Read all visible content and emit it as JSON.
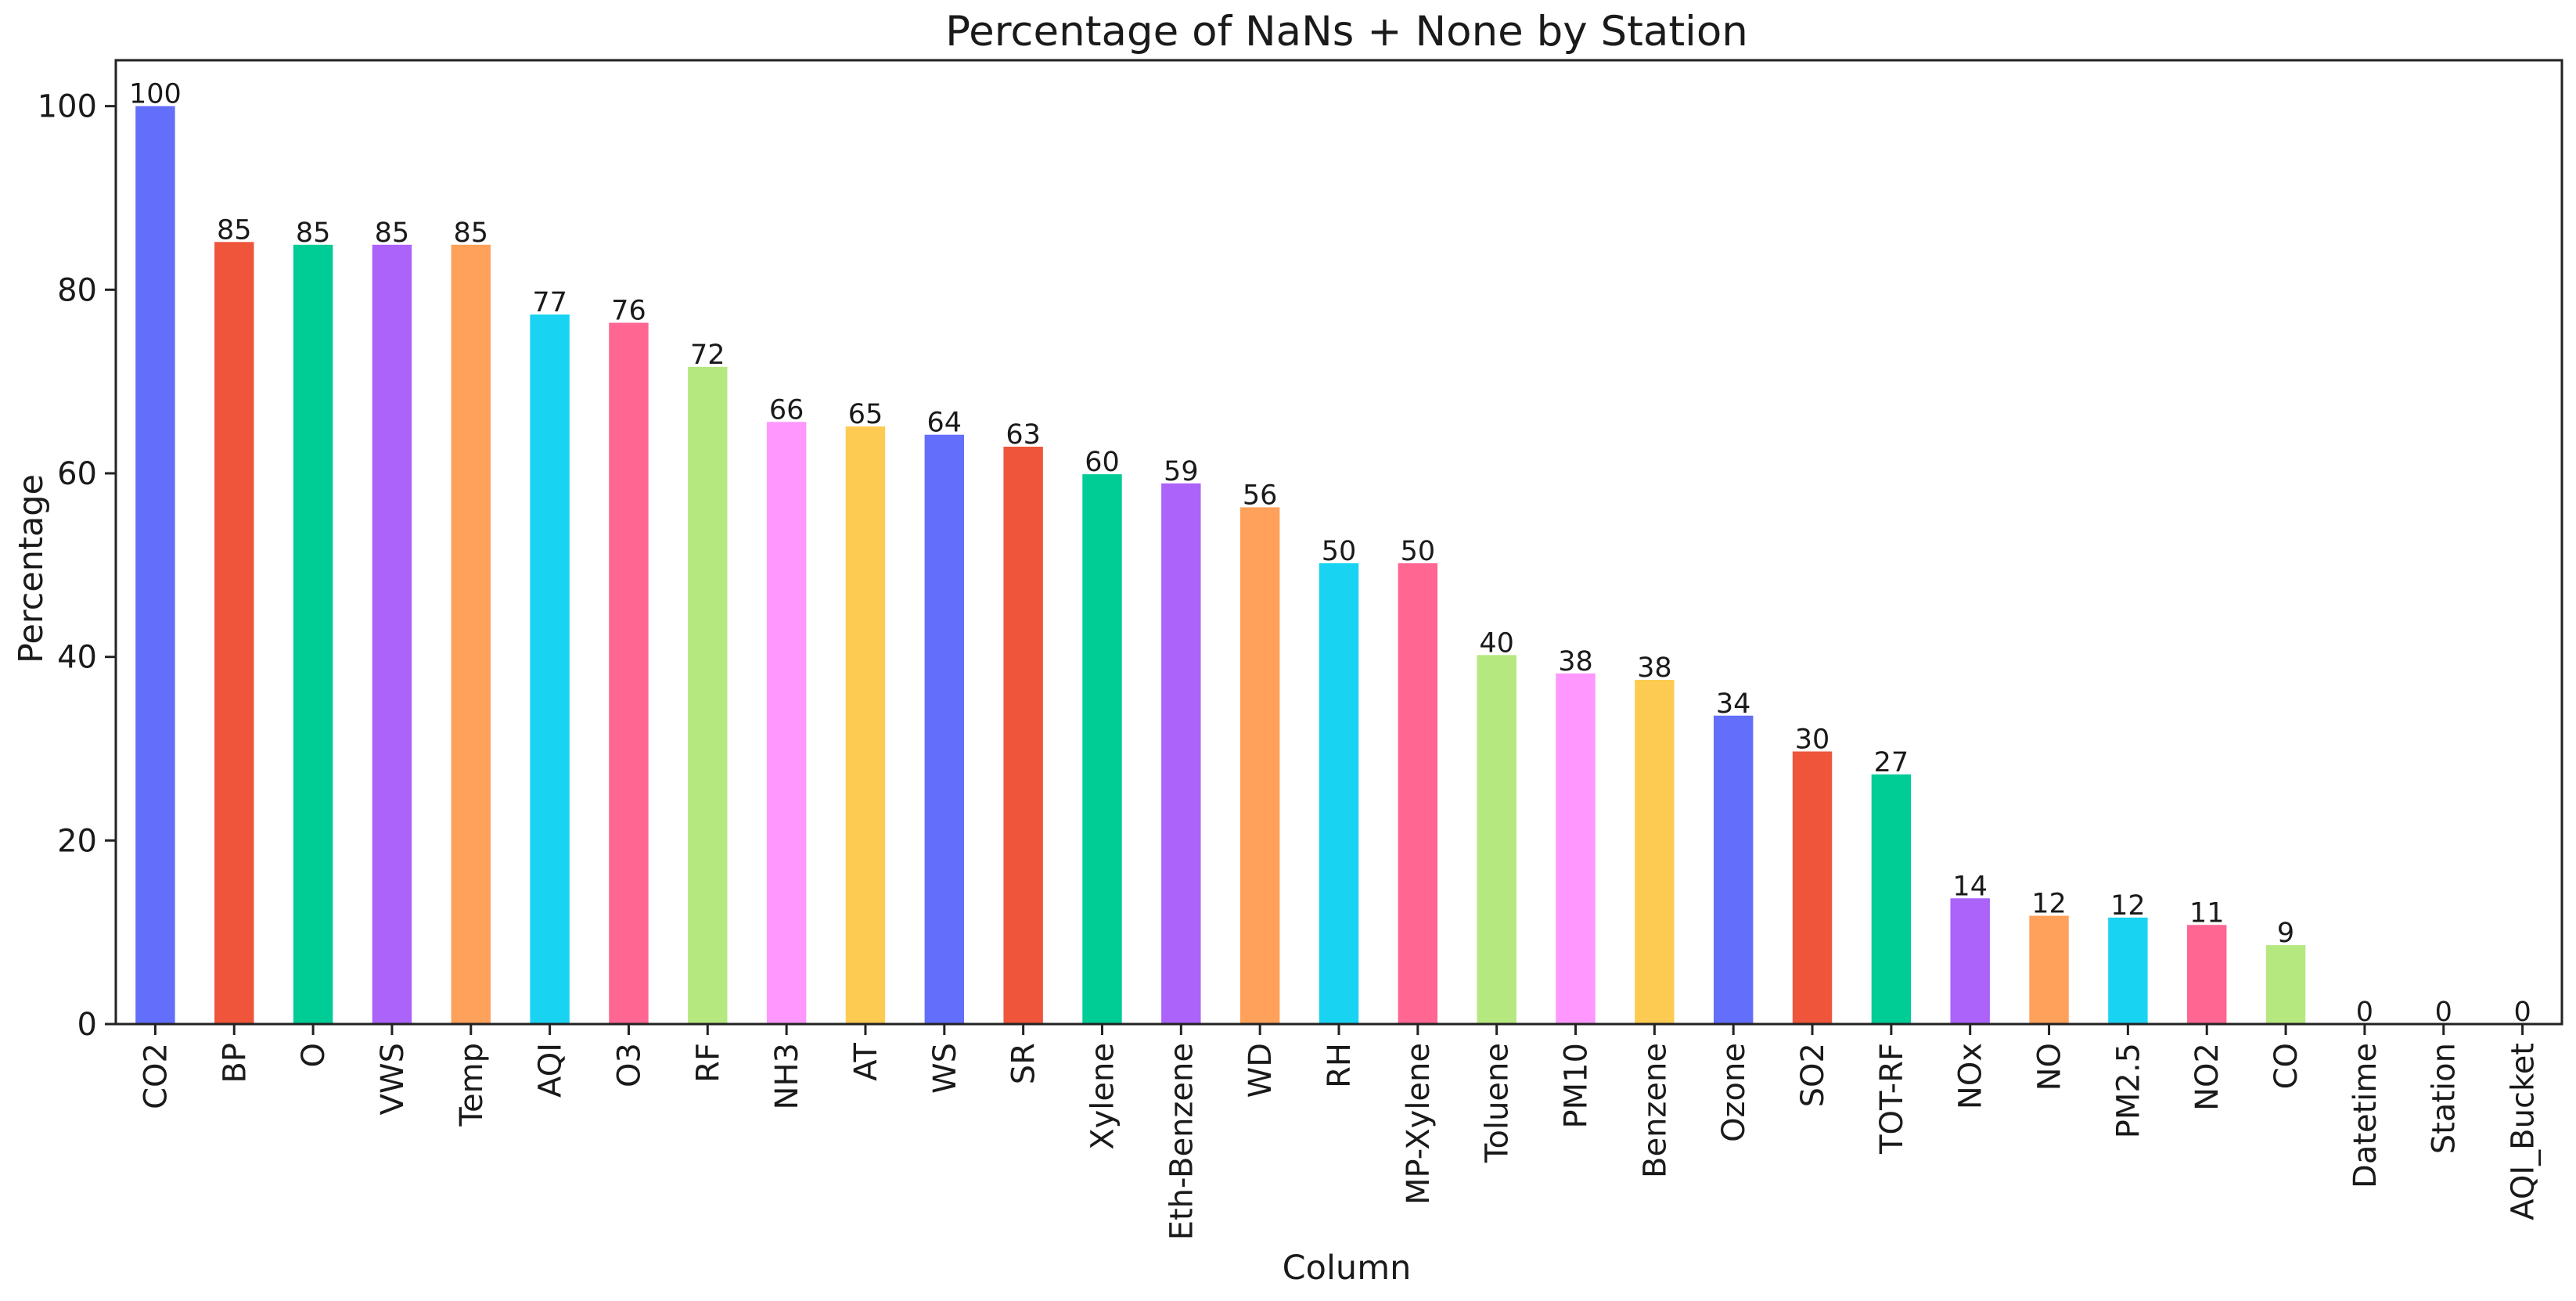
{
  "chart_data": {
    "type": "bar",
    "title": "Percentage of NaNs + None by Station",
    "xlabel": "Column",
    "ylabel": "Percentage",
    "ylim": [
      0,
      105
    ],
    "yticks": [
      0,
      20,
      40,
      60,
      80,
      100
    ],
    "grid": false,
    "legend": "none",
    "categories": [
      "CO2",
      "BP",
      "O",
      "VWS",
      "Temp",
      "AQI",
      "O3",
      "RF",
      "NH3",
      "AT",
      "WS",
      "SR",
      "Xylene",
      "Eth-Benzene",
      "WD",
      "RH",
      "MP-Xylene",
      "Toluene",
      "PM10",
      "Benzene",
      "Ozone",
      "SO2",
      "TOT-RF",
      "NOx",
      "NO",
      "PM2.5",
      "NO2",
      "CO",
      "Datetime",
      "Station",
      "AQI_Bucket"
    ],
    "values": [
      100,
      85.2,
      84.9,
      84.9,
      84.9,
      77.3,
      76.4,
      71.6,
      65.6,
      65.1,
      64.2,
      62.9,
      59.9,
      58.9,
      56.3,
      50.2,
      50.2,
      40.2,
      38.2,
      37.5,
      33.6,
      29.7,
      27.2,
      13.7,
      11.8,
      11.6,
      10.8,
      8.6,
      0,
      0,
      0
    ],
    "data_labels": [
      "100",
      "85",
      "85",
      "85",
      "85",
      "77",
      "76",
      "72",
      "66",
      "65",
      "64",
      "63",
      "60",
      "59",
      "56",
      "50",
      "50",
      "40",
      "38",
      "38",
      "34",
      "30",
      "27",
      "14",
      "12",
      "12",
      "11",
      "9",
      "0",
      "0",
      "0"
    ],
    "colors": [
      "#636efa",
      "#ef553b",
      "#00cc96",
      "#ab63fa",
      "#ffa15a",
      "#19d3f3",
      "#ff6692",
      "#b6e880",
      "#ff97ff",
      "#fecb52"
    ]
  }
}
